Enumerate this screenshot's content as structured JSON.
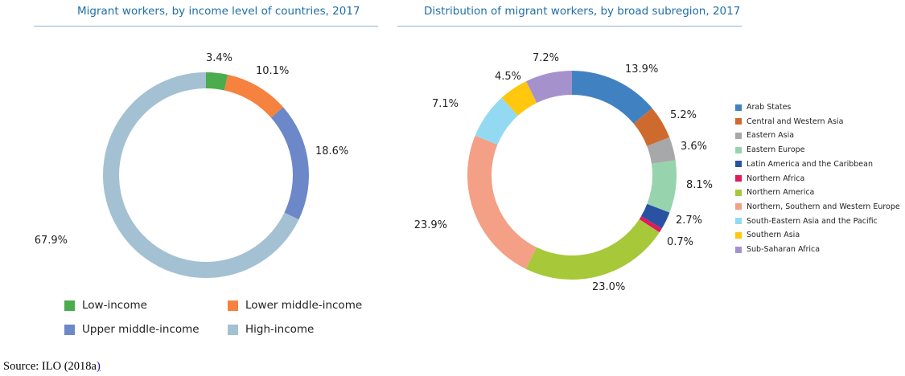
{
  "chart_data": [
    {
      "type": "pie",
      "title": "Migrant workers, by income level of countries, 2017",
      "categories": [
        "Low-income",
        "Lower middle-income",
        "Upper middle-income",
        "High-income"
      ],
      "values": [
        3.4,
        10.1,
        18.6,
        67.9
      ],
      "labels": [
        "3.4%",
        "10.1%",
        "18.6%",
        "67.9%"
      ],
      "colors": [
        "#4aac4d",
        "#f5823f",
        "#6d88c9",
        "#a3c1d2"
      ],
      "legend": "bottom"
    },
    {
      "type": "pie",
      "title": "Distribution of migrant workers, by broad subregion, 2017",
      "categories": [
        "Arab States",
        "Central and Western Asia",
        "Eastern Asia",
        "Eastern Europe",
        "Latin America and the Caribbean",
        "Northern Africa",
        "Northern America",
        "Northern, Southern and Western Europe",
        "South-Eastern Asia and the Pacific",
        "Southern Asia",
        "Sub-Saharan Africa"
      ],
      "values": [
        13.9,
        5.2,
        3.6,
        8.1,
        2.7,
        0.7,
        23.0,
        23.9,
        7.1,
        4.5,
        7.2
      ],
      "labels": [
        "13.9%",
        "5.2%",
        "3.6%",
        "8.1%",
        "2.7%",
        "0.7%",
        "23.0%",
        "23.9%",
        "7.1%",
        "4.5%",
        "7.2%"
      ],
      "colors": [
        "#4082c1",
        "#cf6a2e",
        "#a7a8aa",
        "#97d4ae",
        "#2a52a3",
        "#e2195a",
        "#a6c839",
        "#f3a086",
        "#93d9f2",
        "#ffc70d",
        "#a592cd"
      ],
      "legend": "right"
    }
  ],
  "source": {
    "text": "Source: ILO (2018a",
    "link_text": ")"
  }
}
